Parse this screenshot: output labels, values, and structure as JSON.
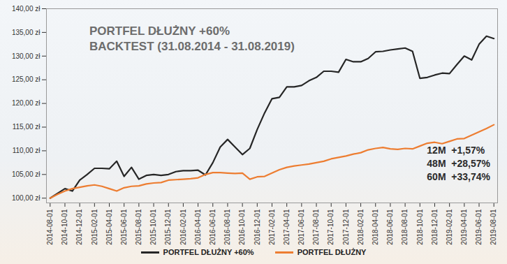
{
  "chart_data": {
    "type": "line",
    "title": "PORTFEL DŁUŻNY +60%",
    "subtitle": "BACKTEST (31.08.2014 - 31.08.2019)",
    "categories": [
      "2014-08-01",
      null,
      "2014-10-01",
      null,
      "2014-12-01",
      null,
      "2015-02-01",
      null,
      "2015-04-01",
      null,
      "2015-06-01",
      null,
      "2015-08-01",
      null,
      "2015-10-01",
      null,
      "2015-12-01",
      null,
      "2016-02-01",
      null,
      "2016-04-01",
      null,
      "2016-06-01",
      null,
      "2016-08-01",
      null,
      "2016-10-01",
      null,
      "2016-12-01",
      null,
      "2017-02-01",
      null,
      "2017-04-01",
      null,
      "2017-06-01",
      null,
      "2017-08-01",
      null,
      "2017-10-01",
      null,
      "2017-12-01",
      null,
      "2018-02-01",
      null,
      "2018-04-01",
      null,
      "2018-06-01",
      null,
      "2018-08-01",
      null,
      "2018-10-01",
      null,
      "2018-12-01",
      null,
      "2019-02-01",
      null,
      "2019-04-01",
      null,
      "2019-06-01",
      null,
      "2019-08-01"
    ],
    "series": [
      {
        "name": "PORTFEL DŁUŻNY +60%",
        "color": "#262626",
        "values": [
          100.0,
          101.0,
          102.0,
          101.5,
          103.8,
          105.0,
          106.3,
          106.3,
          106.2,
          107.8,
          104.6,
          106.5,
          104.0,
          104.8,
          105.0,
          104.8,
          105.0,
          105.6,
          105.8,
          105.8,
          105.9,
          104.9,
          107.5,
          110.8,
          112.4,
          110.8,
          109.2,
          110.5,
          114.5,
          118.0,
          121.0,
          121.3,
          123.5,
          123.5,
          123.8,
          124.8,
          125.5,
          126.8,
          126.8,
          126.6,
          129.3,
          128.8,
          128.8,
          129.5,
          130.9,
          131.0,
          131.3,
          131.5,
          131.7,
          131.0,
          125.3,
          125.5,
          126.0,
          126.4,
          126.3,
          128.2,
          130.0,
          129.2,
          132.5,
          134.2,
          133.7
        ]
      },
      {
        "name": "PORTFEL DŁUŻNY",
        "color": "#ed7d31",
        "values": [
          100.0,
          100.8,
          101.5,
          102.0,
          102.3,
          102.6,
          102.8,
          102.5,
          102.0,
          101.5,
          102.2,
          102.5,
          102.6,
          103.0,
          103.2,
          103.3,
          103.8,
          103.9,
          104.0,
          104.1,
          104.3,
          105.0,
          105.4,
          105.4,
          105.3,
          105.2,
          105.3,
          104.0,
          104.5,
          104.6,
          105.3,
          106.0,
          106.5,
          106.8,
          107.0,
          107.2,
          107.5,
          107.8,
          108.3,
          108.6,
          108.9,
          109.3,
          109.6,
          110.2,
          110.5,
          110.7,
          110.4,
          110.3,
          110.5,
          110.4,
          111.0,
          111.6,
          111.8,
          111.5,
          112.0,
          112.5,
          112.6,
          113.3,
          114.0,
          114.7,
          115.5
        ]
      }
    ],
    "ylim": [
      99,
      140
    ],
    "yticks": [
      {
        "value": 100,
        "label": "100,00 zł"
      },
      {
        "value": 105,
        "label": "105,00 zł"
      },
      {
        "value": 110,
        "label": "110,00 zł"
      },
      {
        "value": 115,
        "label": "115,00 zł"
      },
      {
        "value": 120,
        "label": "120,00 zł"
      },
      {
        "value": 125,
        "label": "125,00 zł"
      },
      {
        "value": 130,
        "label": "130,00 zł"
      },
      {
        "value": 135,
        "label": "135,00 zł"
      },
      {
        "value": 140,
        "label": "140,00 zł"
      }
    ],
    "annotations": [
      "12M  +1,57%",
      "48M  +28,57%",
      "60M  +33,74%"
    ],
    "legend": "bottom",
    "grid": false
  }
}
